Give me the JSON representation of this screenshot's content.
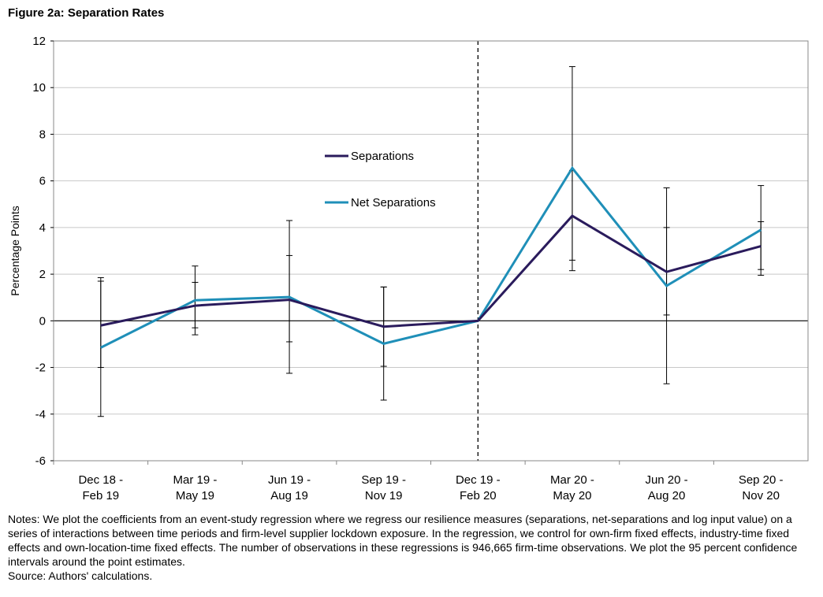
{
  "figure_title": "Figure 2a: Separation Rates",
  "notes": "Notes: We plot the coefficients from an event-study regression where we regress our resilience measures (separations, net-separations and log input value) on a series of interactions between time periods and firm-level supplier lockdown exposure. In the regression, we control for own-firm fixed effects, industry-time fixed effects and own-location-time fixed effects. The number of observations in these regressions is 946,665 firm-time observations. We plot the 95 percent confidence intervals around the point estimates.",
  "source": "Source: Authors' calculations.",
  "colors": {
    "separations": "#2a1b5c",
    "net_separations": "#1f8fb8",
    "grid": "#c8c8c8",
    "axis": "#000000"
  },
  "chart_data": {
    "type": "line",
    "title": "Figure 2a: Separation Rates",
    "xlabel": "",
    "ylabel": "Percentage Points",
    "ylim": [
      -6,
      12
    ],
    "yticks": [
      -6,
      -4,
      -2,
      0,
      2,
      4,
      6,
      8,
      10,
      12
    ],
    "grid": true,
    "legend_position": "upper-center",
    "categories": [
      [
        "Dec 18 -",
        "Feb 19"
      ],
      [
        "Mar 19 -",
        "May 19"
      ],
      [
        "Jun 19 -",
        "Aug 19"
      ],
      [
        "Sep 19 -",
        "Nov 19"
      ],
      [
        "Dec 19 -",
        "Feb 20"
      ],
      [
        "Mar 20 -",
        "May 20"
      ],
      [
        "Jun 20 -",
        "Aug 20"
      ],
      [
        "Sep 20 -",
        "Nov 20"
      ]
    ],
    "vertical_line_at_category": 4,
    "series": [
      {
        "name": "Separations",
        "values": [
          -0.2,
          0.65,
          0.9,
          -0.25,
          0.0,
          4.5,
          2.1,
          3.2
        ],
        "ci_low": [
          -2.0,
          -0.3,
          -0.9,
          -1.95,
          0.0,
          2.6,
          0.25,
          2.2
        ],
        "ci_high": [
          1.85,
          1.65,
          2.8,
          1.45,
          0.0,
          6.45,
          4.0,
          4.25
        ]
      },
      {
        "name": "Net Separations",
        "values": [
          -1.15,
          0.88,
          1.02,
          -0.98,
          0.0,
          6.55,
          1.5,
          3.9
        ],
        "ci_low": [
          -4.1,
          -0.6,
          -2.25,
          -3.4,
          0.0,
          2.15,
          -2.7,
          1.95
        ],
        "ci_high": [
          1.7,
          2.35,
          4.3,
          1.45,
          0.0,
          10.9,
          5.7,
          5.8
        ]
      }
    ]
  }
}
